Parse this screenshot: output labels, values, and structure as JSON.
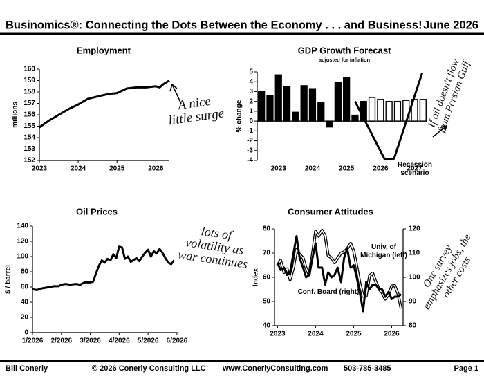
{
  "header": {
    "title": "Businomics®: Connecting the Dots Between the Economy . . . and Business!",
    "date": "June 2026"
  },
  "footer": {
    "author": "Bill Conerly",
    "copyright": "© 2026 Conerly Consulting LLC",
    "website": "www.ConerlyConsulting.com",
    "phone": "503-785-3485",
    "page": "Page 1"
  },
  "chart_data": [
    {
      "type": "line",
      "title": "Employment",
      "y_label": "millions",
      "color": "#000000",
      "x": [
        2023,
        2023.25,
        2023.5,
        2023.75,
        2024,
        2024.25,
        2024.5,
        2024.75,
        2025,
        2025.25,
        2025.5,
        2025.75,
        2026,
        2026.1,
        2026.2,
        2026.35
      ],
      "values": [
        154.9,
        155.5,
        156.0,
        156.5,
        156.9,
        157.4,
        157.6,
        157.8,
        157.9,
        158.3,
        158.4,
        158.4,
        158.5,
        158.4,
        158.7,
        159.0
      ],
      "xlim": [
        2023,
        2026.35
      ],
      "xticks": [
        2023,
        2024,
        2025,
        2026
      ],
      "ylim": [
        152,
        160
      ],
      "yticks": [
        152,
        153,
        154,
        155,
        156,
        157,
        158,
        159,
        160
      ],
      "annotation": "A nice little surge"
    },
    {
      "type": "bar",
      "title": "GDP Growth Forecast",
      "subtitle": "adjusted for inflation",
      "y_label": "% change",
      "categories": [
        null,
        null,
        "2023",
        null,
        null,
        null,
        "2024",
        null,
        null,
        null,
        "2025",
        null,
        null,
        null,
        "2026",
        null,
        null,
        null,
        "2027",
        null
      ],
      "values": [
        3.0,
        2.6,
        4.7,
        3.5,
        0.9,
        3.6,
        3.3,
        1.9,
        -0.6,
        3.9,
        4.4,
        0.6,
        2.0,
        2.4,
        2.2,
        2.0,
        2.0,
        2.1,
        2.2,
        2.2
      ],
      "colors": [
        "#000000",
        "#000000",
        "#000000",
        "#000000",
        "#000000",
        "#000000",
        "#000000",
        "#000000",
        "#000000",
        "#000000",
        "#000000",
        "#000000",
        "#000000",
        "#ffffff",
        "#ffffff",
        "#ffffff",
        "#ffffff",
        "#ffffff",
        "#ffffff",
        "#ffffff"
      ],
      "series": [
        {
          "name": "Recession scenario",
          "color": "#000000",
          "x": [
            11,
            14.5,
            15.6,
            18.9
          ],
          "values": [
            2.0,
            -3.9,
            -3.8,
            4.9
          ]
        }
      ],
      "ylim": [
        -4,
        5
      ],
      "yticks": [
        -4,
        -3,
        -2,
        -1,
        0,
        1,
        2,
        3,
        4,
        5
      ],
      "annotation": "If oil doesn't flow from Persian Gulf"
    },
    {
      "type": "line",
      "title": "Oil Prices",
      "y_label": "$ / barrel",
      "color": "#000000",
      "x": [
        1.0,
        1.15,
        1.3,
        1.45,
        1.6,
        1.75,
        1.9,
        2.0,
        2.15,
        2.3,
        2.5,
        2.65,
        2.8,
        3.0,
        3.1,
        3.2,
        3.3,
        3.4,
        3.5,
        3.6,
        3.7,
        3.8,
        3.9,
        4.0,
        4.1,
        4.2,
        4.3,
        4.4,
        4.6,
        4.7,
        4.8,
        4.9,
        5.0,
        5.1,
        5.2,
        5.3,
        5.4,
        5.5,
        5.6,
        5.7,
        5.8,
        5.9
      ],
      "values": [
        57,
        56,
        58,
        59,
        60,
        61,
        61,
        63,
        64,
        63,
        64,
        63,
        66,
        66,
        67,
        78,
        88,
        95,
        92,
        97,
        95,
        103,
        98,
        113,
        112,
        97,
        100,
        93,
        98,
        94,
        100,
        105,
        109,
        100,
        107,
        104,
        110,
        105,
        98,
        92,
        90,
        95
      ],
      "xlim": [
        1,
        6.05
      ],
      "xticks": [
        {
          "value": 1,
          "label": "1/2026"
        },
        {
          "value": 2,
          "label": "2/2026"
        },
        {
          "value": 3,
          "label": "3/2026"
        },
        {
          "value": 4,
          "label": "4/2026"
        },
        {
          "value": 5,
          "label": "5/2026"
        },
        {
          "value": 6,
          "label": "6/2026"
        }
      ],
      "ylim": [
        0,
        140
      ],
      "yticks": [
        0,
        20,
        40,
        60,
        80,
        100,
        120,
        140
      ],
      "annotation": "lots of volatility as war continues"
    },
    {
      "type": "dual-line",
      "title": "Consumer Attitudes",
      "y_label": "Index",
      "x": [
        2023,
        2023.08,
        2023.17,
        2023.25,
        2023.33,
        2023.42,
        2023.5,
        2023.58,
        2023.67,
        2023.75,
        2023.83,
        2023.92,
        2024,
        2024.08,
        2024.17,
        2024.25,
        2024.33,
        2024.42,
        2024.5,
        2024.58,
        2024.67,
        2024.75,
        2024.83,
        2024.92,
        2025,
        2025.08,
        2025.17,
        2025.25,
        2025.33,
        2025.42,
        2025.5,
        2025.58,
        2025.67,
        2025.75,
        2025.83,
        2025.92,
        2026,
        2026.08,
        2026.17,
        2026.25
      ],
      "series": [
        {
          "name": "Univ. of Michigan (left)",
          "color": "#ffffff",
          "edge_color": "#000000",
          "values": [
            64.9,
            67,
            62,
            63.5,
            59,
            64,
            71.5,
            69.5,
            68,
            63.8,
            61,
            69.7,
            79,
            77,
            79.4,
            77.2,
            69,
            68,
            66,
            67.9,
            70,
            70.5,
            71.8,
            74,
            71,
            64.7,
            57,
            52.2,
            52.2,
            60.7,
            61.7,
            58.2,
            55.1,
            53.6,
            51,
            52.9,
            56.4,
            56.6,
            53,
            47
          ]
        },
        {
          "name": "Conf. Board (right)",
          "color": "#000000",
          "axis": "y2",
          "values": [
            106,
            103,
            104,
            101,
            102,
            110,
            117,
            108,
            104,
            100,
            101,
            108,
            114,
            104,
            104,
            97,
            102,
            100,
            101,
            104,
            98,
            108,
            112,
            104,
            105,
            100,
            93,
            86,
            98,
            95,
            97,
            97,
            95,
            95,
            92,
            94,
            91,
            92,
            92,
            93
          ]
        }
      ],
      "xlim": [
        2022.92,
        2026.3
      ],
      "xticks": [
        2023,
        2024,
        2025,
        2026
      ],
      "ylim": [
        40,
        80
      ],
      "yticks": [
        40,
        50,
        60,
        70,
        80
      ],
      "y2lim": [
        80,
        120
      ],
      "y2ticks": [
        80,
        90,
        100,
        110,
        120
      ],
      "annotation": "One survey emphasizes jobs, the other costs"
    }
  ]
}
